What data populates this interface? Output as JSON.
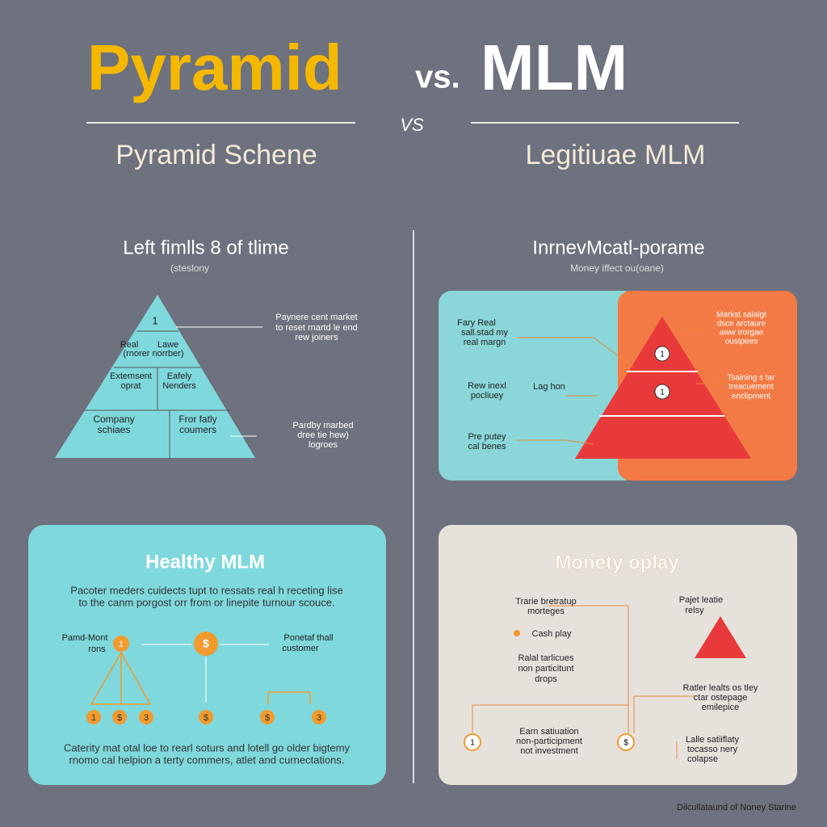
{
  "header": {
    "title_left": "Pyramid",
    "title_vs": "vs.",
    "title_right": "MLM",
    "divider_vs": "VS",
    "sub_left": "Pyramid Schene",
    "sub_right": "Legitiuae MLM"
  },
  "left_top": {
    "title": "Left fimlls 8 of tlime",
    "subtitle": "(steslony",
    "apex": "1",
    "tiers": [
      [
        "Real",
        "Lawe",
        "(rnorer norrber)"
      ],
      [
        "Extemsent",
        "oprat",
        "Eafely",
        "Nenders"
      ],
      [
        "Company",
        "schiaes",
        "Fror fatly",
        "coumers"
      ]
    ],
    "note_top": [
      "Paynere cent market",
      "to reset rnartd le end",
      "rew joiners"
    ],
    "note_bottom": [
      "Pardby marbed",
      "dree tie hew)",
      "logroes"
    ]
  },
  "right_top": {
    "title": "InrnevMcatl-porame",
    "subtitle": "Money iffect ou(oane)",
    "left_labels": [
      [
        "Fary Real",
        "sall.stad my",
        "real margn"
      ],
      [
        "Rew inexl",
        "pocliuey"
      ],
      [
        "Pre putey",
        "cal benes"
      ]
    ],
    "mid_label": "Lag hon",
    "right_labels": [
      [
        "Markst salalgt",
        "dsce arctaure",
        "aww trorgae",
        "oustpees"
      ],
      [
        "Tsaining s tar",
        "treacuement",
        "enclipment"
      ]
    ],
    "circles": [
      "1",
      "1"
    ]
  },
  "bottom_left": {
    "title": "Healthy MLM",
    "text": [
      "Pacoter meders cuidects tupt to ressats real h receting lise",
      "to the canm porgost orr from or linepite turnour scouce."
    ],
    "left_label": [
      "Pamd-Mont",
      "rons"
    ],
    "top_circles": [
      "1",
      "$"
    ],
    "right_label": [
      "Ponetaf thall",
      "customer"
    ],
    "bottom_circles": [
      "1",
      "$",
      "3",
      "$",
      "$",
      "3"
    ],
    "footer": [
      "Caterity mat otal loe to rearl soturs and lotell go older bigtemy",
      "rnomo cal helpion a terty commers, atlet and curnectations."
    ]
  },
  "bottom_right": {
    "title": "Monety oplay",
    "label_a": [
      "Trarie bretratup",
      "morteges"
    ],
    "cash": "Cash play",
    "label_b": [
      "Ralal tarlicues",
      "non particitunt",
      "drops"
    ],
    "label_c": [
      "Earn satiuation",
      "non-participment",
      "not investment"
    ],
    "label_d": [
      "Pajet leatie",
      "relsy"
    ],
    "label_e": [
      "Ratler lealts os tley",
      "ctar ostepage",
      "emilepice"
    ],
    "label_f": [
      "Lalle satiiflaty",
      "tocasso nery",
      "colapse"
    ],
    "circles": [
      "1",
      "$"
    ]
  },
  "footer": "Dilcullataund of Noney Starine"
}
